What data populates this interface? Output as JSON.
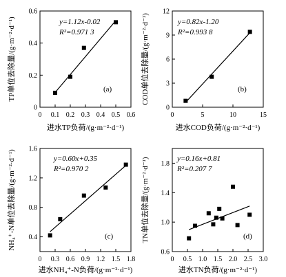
{
  "chart_data": [
    {
      "type": "scatter",
      "panel_label": "(a)",
      "xlabel": "进水TP负荷/(g·m⁻²·d⁻¹)",
      "ylabel": "TP单位去除量/(g·m⁻²·d⁻¹)",
      "xlim": [
        0,
        0.6
      ],
      "ylim": [
        0,
        0.6
      ],
      "xticks": [
        "0",
        "0.1",
        "0.2",
        "0.3",
        "0.4",
        "0.5",
        "0.6"
      ],
      "yticks": [
        "0",
        "0.2",
        "0.4",
        "0.6"
      ],
      "points": [
        {
          "x": 0.1,
          "y": 0.09
        },
        {
          "x": 0.2,
          "y": 0.19
        },
        {
          "x": 0.29,
          "y": 0.37
        },
        {
          "x": 0.5,
          "y": 0.53
        }
      ],
      "fit": {
        "slope": 1.12,
        "intercept": -0.02,
        "x_range": [
          0.09,
          0.5
        ]
      },
      "equation": "y=1.12x-0.02",
      "r2": "R²=0.971 3"
    },
    {
      "type": "scatter",
      "panel_label": "(b)",
      "xlabel": "进水COD负荷/(g·m⁻²·d⁻¹)",
      "ylabel": "COD单位去除量/(g·m⁻²·d⁻¹)",
      "xlim": [
        0,
        15
      ],
      "ylim": [
        0,
        12
      ],
      "xticks": [
        "0",
        "5",
        "10",
        "15"
      ],
      "yticks": [
        "0",
        "3",
        "6",
        "9",
        "12"
      ],
      "points": [
        {
          "x": 2.2,
          "y": 0.8
        },
        {
          "x": 6.5,
          "y": 3.8
        },
        {
          "x": 12.8,
          "y": 9.4
        }
      ],
      "fit": {
        "slope": 0.82,
        "intercept": -1.2,
        "x_range": [
          2.2,
          12.8
        ]
      },
      "equation": "y=0.82x-1.20",
      "r2": "R²=0.993 8"
    },
    {
      "type": "scatter",
      "panel_label": "(c)",
      "xlabel": "进水NH₄⁺-N负荷/(g·m⁻²·d⁻¹)",
      "ylabel": "NH₄⁺-N单位去除量/(g·m⁻²·d⁻¹)",
      "xlim": [
        0,
        1.8
      ],
      "ylim": [
        0.2,
        1.6
      ],
      "xticks": [
        "0",
        "0.3",
        "0.6",
        "0.9",
        "1.2",
        "1.5",
        "1.8"
      ],
      "yticks": [
        "0.4",
        "0.8",
        "1.2",
        "1.6"
      ],
      "points": [
        {
          "x": 0.2,
          "y": 0.42
        },
        {
          "x": 0.4,
          "y": 0.64
        },
        {
          "x": 0.87,
          "y": 0.96
        },
        {
          "x": 1.3,
          "y": 1.07
        },
        {
          "x": 1.7,
          "y": 1.38
        }
      ],
      "fit": {
        "slope": 0.6,
        "intercept": 0.35,
        "x_range": [
          0.2,
          1.7
        ]
      },
      "equation": "y=0.60x+0.35",
      "r2": "R²=0.970 2"
    },
    {
      "type": "scatter",
      "panel_label": "(d)",
      "xlabel": "进水TN负荷/(g·m⁻²·d⁻¹)",
      "ylabel": "TN单位去除量/(g·m⁻²·d⁻¹)",
      "xlim": [
        0,
        3.0
      ],
      "ylim": [
        0.6,
        2.0
      ],
      "xticks": [
        "0",
        "0.5",
        "1.0",
        "1.5",
        "2.0",
        "2.5",
        "3.0"
      ],
      "yticks": [
        "0.6",
        "1.0",
        "1.4",
        "1.8"
      ],
      "points": [
        {
          "x": 0.55,
          "y": 0.78
        },
        {
          "x": 0.75,
          "y": 0.95
        },
        {
          "x": 1.2,
          "y": 1.12
        },
        {
          "x": 1.35,
          "y": 0.97
        },
        {
          "x": 1.45,
          "y": 1.06
        },
        {
          "x": 1.55,
          "y": 1.18
        },
        {
          "x": 1.65,
          "y": 1.05
        },
        {
          "x": 2.0,
          "y": 1.48
        },
        {
          "x": 2.15,
          "y": 0.96
        },
        {
          "x": 2.55,
          "y": 1.1
        }
      ],
      "fit": {
        "slope": 0.16,
        "intercept": 0.81,
        "x_range": [
          0.55,
          2.55
        ]
      },
      "equation": "y=0.16x+0.81",
      "r2": "R²=0.207 7"
    }
  ]
}
